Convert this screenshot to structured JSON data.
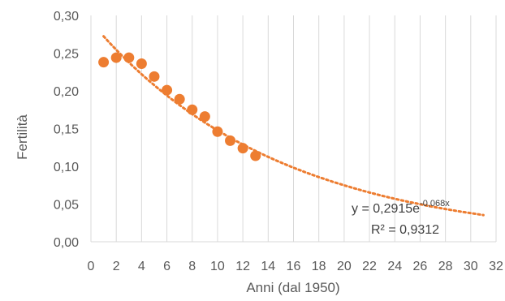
{
  "chart_data": {
    "type": "scatter",
    "xlabel": "Anni (dal 1950)",
    "ylabel": "Fertilità",
    "xlim": [
      0,
      32
    ],
    "ylim": [
      0,
      0.3
    ],
    "x_ticks": [
      "0",
      "2",
      "4",
      "6",
      "8",
      "10",
      "12",
      "14",
      "16",
      "18",
      "20",
      "22",
      "24",
      "26",
      "28",
      "30",
      "32"
    ],
    "y_ticks": [
      "0,00",
      "0,05",
      "0,10",
      "0,15",
      "0,20",
      "0,25",
      "0,30"
    ],
    "grid": "vertical",
    "series": [
      {
        "marker_color": "#ED7D31",
        "points": [
          {
            "x": 1,
            "y": 0.238
          },
          {
            "x": 2,
            "y": 0.244
          },
          {
            "x": 3,
            "y": 0.244
          },
          {
            "x": 4,
            "y": 0.236
          },
          {
            "x": 5,
            "y": 0.219
          },
          {
            "x": 6,
            "y": 0.201
          },
          {
            "x": 7,
            "y": 0.189
          },
          {
            "x": 8,
            "y": 0.175
          },
          {
            "x": 9,
            "y": 0.166
          },
          {
            "x": 10,
            "y": 0.146
          },
          {
            "x": 11,
            "y": 0.134
          },
          {
            "x": 12,
            "y": 0.124
          },
          {
            "x": 13,
            "y": 0.114
          }
        ]
      }
    ],
    "trendline": {
      "type": "exponential",
      "a": 0.2915,
      "b": -0.068,
      "x_range": [
        1,
        31
      ],
      "color": "#ED7D31",
      "equation_main": "y = 0,2915e",
      "equation_exp": "-0,068x",
      "r_squared": "R² = 0,9312"
    }
  }
}
